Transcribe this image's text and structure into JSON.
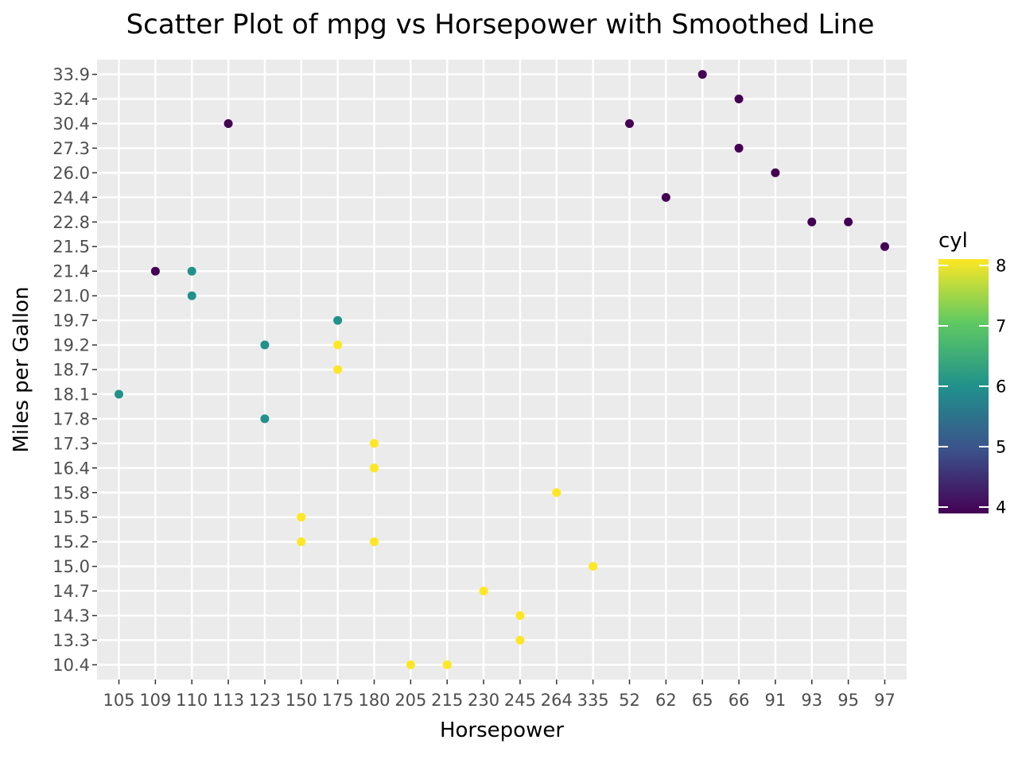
{
  "chart_data": {
    "type": "scatter",
    "title": "Scatter Plot of mpg vs Horsepower with Smoothed Line",
    "xlabel": "Horsepower",
    "ylabel": "Miles per Gallon",
    "x_axis": {
      "type": "discrete",
      "categories": [
        "105",
        "109",
        "110",
        "113",
        "123",
        "150",
        "175",
        "180",
        "205",
        "215",
        "230",
        "245",
        "264",
        "335",
        "52",
        "62",
        "65",
        "66",
        "91",
        "93",
        "95",
        "97"
      ]
    },
    "y_axis": {
      "type": "discrete",
      "categories": [
        "10.4",
        "13.3",
        "14.3",
        "14.7",
        "15.0",
        "15.2",
        "15.5",
        "15.8",
        "16.4",
        "17.3",
        "17.8",
        "18.1",
        "18.7",
        "19.2",
        "19.7",
        "21.0",
        "21.4",
        "21.5",
        "22.8",
        "24.4",
        "26.0",
        "27.3",
        "30.4",
        "32.4",
        "33.9"
      ]
    },
    "grid": true,
    "legend": {
      "title": "cyl",
      "type": "colorbar",
      "placement": "right",
      "range": [
        4,
        8
      ],
      "ticks": [
        "4",
        "5",
        "6",
        "7",
        "8"
      ],
      "colors": [
        "#440154",
        "#3b528b",
        "#21918c",
        "#5ec962",
        "#fde725"
      ]
    },
    "points": [
      {
        "x": "105",
        "y": "18.1",
        "cyl": 6
      },
      {
        "x": "109",
        "y": "21.4",
        "cyl": 4
      },
      {
        "x": "110",
        "y": "21.4",
        "cyl": 6
      },
      {
        "x": "110",
        "y": "21.0",
        "cyl": 6
      },
      {
        "x": "113",
        "y": "30.4",
        "cyl": 4
      },
      {
        "x": "123",
        "y": "19.2",
        "cyl": 6
      },
      {
        "x": "123",
        "y": "17.8",
        "cyl": 6
      },
      {
        "x": "150",
        "y": "15.5",
        "cyl": 8
      },
      {
        "x": "150",
        "y": "15.2",
        "cyl": 8
      },
      {
        "x": "175",
        "y": "19.7",
        "cyl": 6
      },
      {
        "x": "175",
        "y": "19.2",
        "cyl": 8
      },
      {
        "x": "175",
        "y": "18.7",
        "cyl": 8
      },
      {
        "x": "180",
        "y": "17.3",
        "cyl": 8
      },
      {
        "x": "180",
        "y": "16.4",
        "cyl": 8
      },
      {
        "x": "180",
        "y": "15.2",
        "cyl": 8
      },
      {
        "x": "205",
        "y": "10.4",
        "cyl": 8
      },
      {
        "x": "215",
        "y": "10.4",
        "cyl": 8
      },
      {
        "x": "230",
        "y": "14.7",
        "cyl": 8
      },
      {
        "x": "245",
        "y": "14.3",
        "cyl": 8
      },
      {
        "x": "245",
        "y": "13.3",
        "cyl": 8
      },
      {
        "x": "264",
        "y": "15.8",
        "cyl": 8
      },
      {
        "x": "335",
        "y": "15.0",
        "cyl": 8
      },
      {
        "x": "52",
        "y": "30.4",
        "cyl": 4
      },
      {
        "x": "62",
        "y": "24.4",
        "cyl": 4
      },
      {
        "x": "65",
        "y": "33.9",
        "cyl": 4
      },
      {
        "x": "66",
        "y": "32.4",
        "cyl": 4
      },
      {
        "x": "66",
        "y": "27.3",
        "cyl": 4
      },
      {
        "x": "91",
        "y": "26.0",
        "cyl": 4
      },
      {
        "x": "93",
        "y": "22.8",
        "cyl": 4
      },
      {
        "x": "95",
        "y": "22.8",
        "cyl": 4
      },
      {
        "x": "97",
        "y": "21.5",
        "cyl": 4
      }
    ],
    "colors": {
      "panel_background": "#ebebeb",
      "grid": "#ffffff",
      "tick_text": "#4d4d4d",
      "tick_mark": "#333333"
    }
  }
}
